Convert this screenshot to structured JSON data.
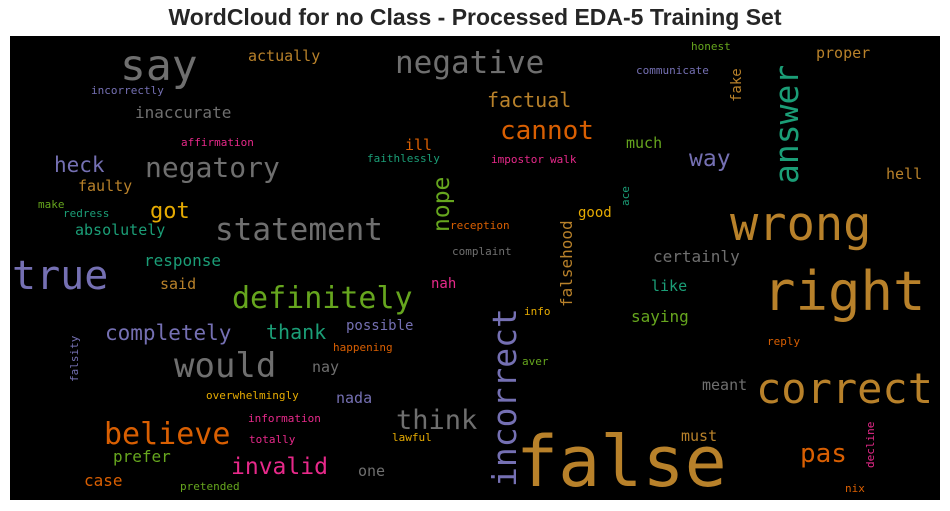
{
  "chart_data": {
    "type": "wordcloud",
    "title": "WordCloud for no Class - Processed EDA-5 Training Set",
    "background": "#000000",
    "palette": {
      "gold": "#b8812a",
      "gray": "#6f6f6f",
      "purple": "#7570b3",
      "teal": "#1b9e77",
      "orange": "#d95f02",
      "green": "#66a61e",
      "pink": "#e7298a",
      "yellow": "#e6ab02"
    },
    "words": [
      {
        "text": "false",
        "weight": 100,
        "color": "gold"
      },
      {
        "text": "right",
        "weight": 82,
        "color": "gold"
      },
      {
        "text": "wrong",
        "weight": 72,
        "color": "gold"
      },
      {
        "text": "correct",
        "weight": 64,
        "color": "gold"
      },
      {
        "text": "true",
        "weight": 60,
        "color": "purple"
      },
      {
        "text": "say",
        "weight": 58,
        "color": "gray"
      },
      {
        "text": "answer",
        "weight": 50,
        "color": "teal"
      },
      {
        "text": "incorrect",
        "weight": 50,
        "color": "purple"
      },
      {
        "text": "would",
        "weight": 48,
        "color": "gray"
      },
      {
        "text": "statement",
        "weight": 42,
        "color": "gray"
      },
      {
        "text": "negative",
        "weight": 42,
        "color": "gray"
      },
      {
        "text": "definitely",
        "weight": 40,
        "color": "green"
      },
      {
        "text": "believe",
        "weight": 40,
        "color": "orange"
      },
      {
        "text": "negatory",
        "weight": 38,
        "color": "gray"
      },
      {
        "text": "think",
        "weight": 36,
        "color": "gray"
      },
      {
        "text": "cannot",
        "weight": 35,
        "color": "orange"
      },
      {
        "text": "pas",
        "weight": 35,
        "color": "orange"
      },
      {
        "text": "invalid",
        "weight": 31,
        "color": "pink"
      },
      {
        "text": "nope",
        "weight": 29,
        "color": "green"
      },
      {
        "text": "way",
        "weight": 29,
        "color": "purple"
      },
      {
        "text": "completely",
        "weight": 28,
        "color": "purple"
      },
      {
        "text": "heck",
        "weight": 28,
        "color": "purple"
      },
      {
        "text": "got",
        "weight": 26,
        "color": "yellow"
      },
      {
        "text": "thank",
        "weight": 26,
        "color": "teal"
      },
      {
        "text": "factual",
        "weight": 25,
        "color": "gold"
      },
      {
        "text": "inaccurate",
        "weight": 21,
        "color": "gray"
      },
      {
        "text": "falsehood",
        "weight": 21,
        "color": "gold"
      },
      {
        "text": "response",
        "weight": 21,
        "color": "teal"
      },
      {
        "text": "certainly",
        "weight": 21,
        "color": "gray"
      },
      {
        "text": "saying",
        "weight": 21,
        "color": "green"
      },
      {
        "text": "prefer",
        "weight": 20,
        "color": "green"
      },
      {
        "text": "case",
        "weight": 19,
        "color": "orange"
      },
      {
        "text": "must",
        "weight": 19,
        "color": "gold"
      },
      {
        "text": "meant",
        "weight": 19,
        "color": "gray"
      },
      {
        "text": "nay",
        "weight": 19,
        "color": "gray"
      },
      {
        "text": "nada",
        "weight": 19,
        "color": "purple"
      },
      {
        "text": "one",
        "weight": 19,
        "color": "gray"
      },
      {
        "text": "proper",
        "weight": 19,
        "color": "gold"
      },
      {
        "text": "actually",
        "weight": 18,
        "color": "gold"
      },
      {
        "text": "absolutely",
        "weight": 18,
        "color": "teal"
      },
      {
        "text": "faulty",
        "weight": 18,
        "color": "gold"
      },
      {
        "text": "said",
        "weight": 18,
        "color": "gold"
      },
      {
        "text": "ill",
        "weight": 18,
        "color": "orange"
      },
      {
        "text": "much",
        "weight": 18,
        "color": "green"
      },
      {
        "text": "like",
        "weight": 18,
        "color": "teal"
      },
      {
        "text": "hell",
        "weight": 18,
        "color": "gold"
      },
      {
        "text": "possible",
        "weight": 17,
        "color": "purple"
      },
      {
        "text": "good",
        "weight": 17,
        "color": "yellow"
      },
      {
        "text": "nah",
        "weight": 17,
        "color": "pink"
      },
      {
        "text": "fake",
        "weight": 17,
        "color": "gold"
      },
      {
        "text": "impostor",
        "weight": 13,
        "color": "pink"
      },
      {
        "text": "affirmation",
        "weight": 12,
        "color": "pink"
      },
      {
        "text": "information",
        "weight": 12,
        "color": "pink"
      },
      {
        "text": "faithlessly",
        "weight": 12,
        "color": "teal"
      },
      {
        "text": "overwhelmingly",
        "weight": 12,
        "color": "yellow"
      },
      {
        "text": "incorrectly",
        "weight": 12,
        "color": "purple"
      },
      {
        "text": "communicate",
        "weight": 12,
        "color": "purple"
      },
      {
        "text": "totally",
        "weight": 12,
        "color": "pink"
      },
      {
        "text": "lawful",
        "weight": 12,
        "color": "yellow"
      },
      {
        "text": "happening",
        "weight": 12,
        "color": "orange"
      },
      {
        "text": "reception",
        "weight": 12,
        "color": "orange"
      },
      {
        "text": "complaint",
        "weight": 12,
        "color": "gray"
      },
      {
        "text": "redress",
        "weight": 12,
        "color": "teal"
      },
      {
        "text": "make",
        "weight": 12,
        "color": "green"
      },
      {
        "text": "walk",
        "weight": 12,
        "color": "pink"
      },
      {
        "text": "honest",
        "weight": 12,
        "color": "green"
      },
      {
        "text": "info",
        "weight": 12,
        "color": "yellow"
      },
      {
        "text": "aver",
        "weight": 12,
        "color": "green"
      },
      {
        "text": "reply",
        "weight": 12,
        "color": "orange"
      },
      {
        "text": "nix",
        "weight": 12,
        "color": "orange"
      },
      {
        "text": "pretended",
        "weight": 12,
        "color": "green"
      },
      {
        "text": "falsity",
        "weight": 12,
        "color": "purple"
      },
      {
        "text": "decline",
        "weight": 12,
        "color": "pink"
      },
      {
        "text": "ace",
        "weight": 12,
        "color": "teal"
      }
    ]
  }
}
